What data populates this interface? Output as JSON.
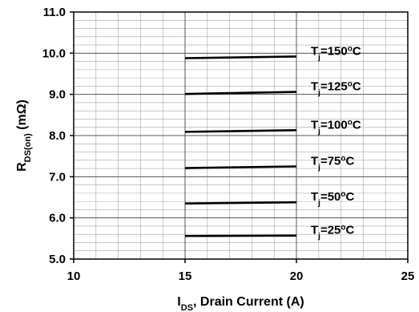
{
  "chart_data": {
    "type": "line",
    "xlabel": {
      "main": "I",
      "sub": "DS",
      "rest": ", Drain Current (A)"
    },
    "ylabel": {
      "main": "R",
      "sub": "DS(on)",
      "rest": " (mΩ)"
    },
    "xlim": [
      10,
      25
    ],
    "ylim": [
      5.0,
      11.0
    ],
    "xticks": [
      "10",
      "15",
      "20",
      "25"
    ],
    "yticks": [
      "5.0",
      "6.0",
      "7.0",
      "8.0",
      "9.0",
      "10.0",
      "11.0"
    ],
    "grid": true,
    "series": [
      {
        "name": "Tj=150oC",
        "label": {
          "pre": "T",
          "sub": "j",
          "mid": "=150",
          "sup": "o",
          "post": "C"
        },
        "x": [
          15,
          20
        ],
        "y": [
          9.88,
          9.92
        ]
      },
      {
        "name": "Tj=125oC",
        "label": {
          "pre": "T",
          "sub": "j",
          "mid": "=125",
          "sup": "o",
          "post": "C"
        },
        "x": [
          15,
          20
        ],
        "y": [
          9.01,
          9.06
        ]
      },
      {
        "name": "Tj=100oC",
        "label": {
          "pre": "T",
          "sub": "j",
          "mid": "=100",
          "sup": "o",
          "post": "C"
        },
        "x": [
          15,
          20
        ],
        "y": [
          8.09,
          8.13
        ]
      },
      {
        "name": "Tj=75oC",
        "label": {
          "pre": "T",
          "sub": "j",
          "mid": "=75",
          "sup": "o",
          "post": "C"
        },
        "x": [
          15,
          20
        ],
        "y": [
          7.21,
          7.25
        ]
      },
      {
        "name": "Tj=50oC",
        "label": {
          "pre": "T",
          "sub": "j",
          "mid": "=50",
          "sup": "o",
          "post": "C"
        },
        "x": [
          15,
          20
        ],
        "y": [
          6.35,
          6.38
        ]
      },
      {
        "name": "Tj=25oC",
        "label": {
          "pre": "T",
          "sub": "j",
          "mid": "=25",
          "sup": "o",
          "post": "C"
        },
        "x": [
          15,
          20
        ],
        "y": [
          5.56,
          5.57
        ]
      }
    ],
    "colors": {
      "line": "#000000",
      "grid": "#a6a6a6",
      "axis": "#000000"
    }
  }
}
